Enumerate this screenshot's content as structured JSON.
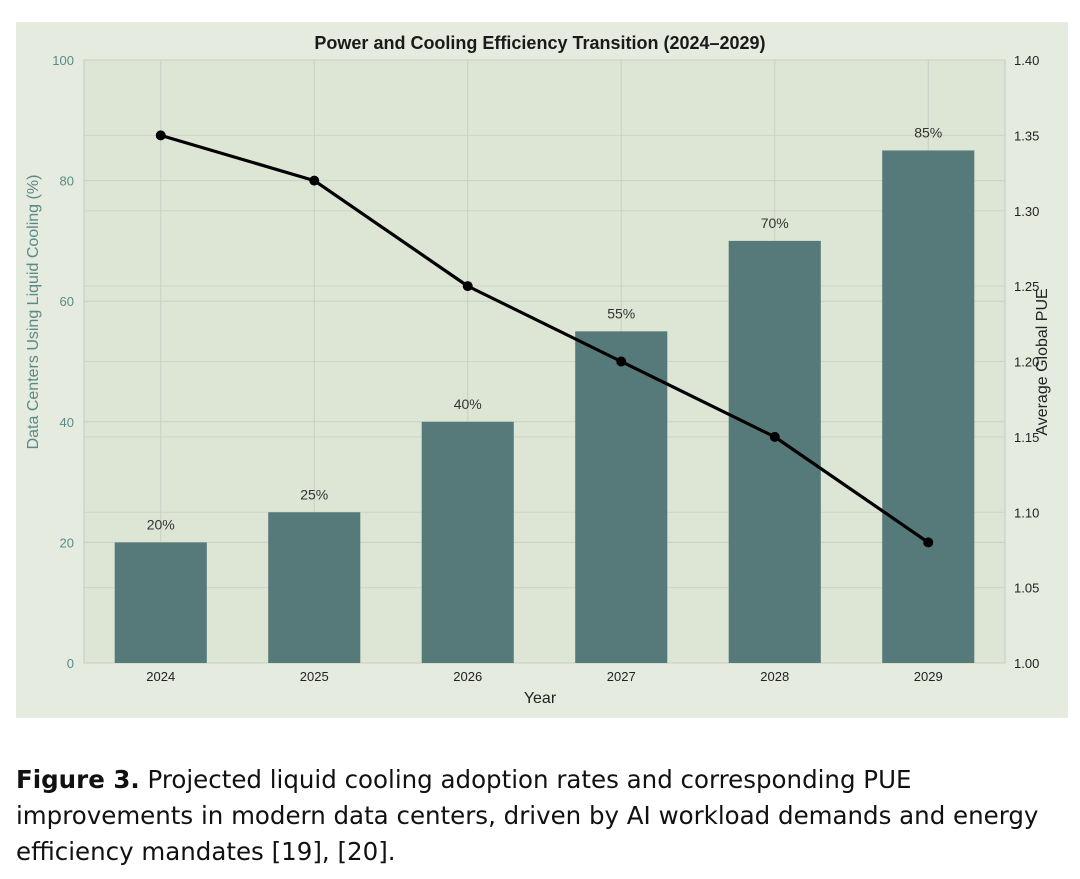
{
  "chart_data": {
    "type": "bar",
    "title": "Power and Cooling Efficiency Transition (2024–2029)",
    "xlabel": "Year",
    "ylabel": "Data Centers Using Liquid Cooling (%)",
    "y2label": "Average Global PUE",
    "categories": [
      "2024",
      "2025",
      "2026",
      "2027",
      "2028",
      "2029"
    ],
    "series": [
      {
        "values": [
          20,
          25,
          40,
          55,
          70,
          85
        ],
        "kind": "bar",
        "axis": "left"
      },
      {
        "values": [
          1.35,
          1.32,
          1.25,
          1.2,
          1.15,
          1.08
        ],
        "kind": "line",
        "axis": "right"
      }
    ],
    "data_labels": [
      "20%",
      "25%",
      "40%",
      "55%",
      "70%",
      "85%"
    ],
    "ylim": [
      0,
      100
    ],
    "y2lim": [
      1.0,
      1.4
    ],
    "yticks": [
      "0",
      "20",
      "40",
      "60",
      "80",
      "100"
    ],
    "y2ticks": [
      "1.00",
      "1.05",
      "1.10",
      "1.15",
      "1.20",
      "1.25",
      "1.30",
      "1.35",
      "1.40"
    ],
    "grid": true,
    "colors": {
      "bar": "#567a7a",
      "line": "#000000",
      "left_axis_text": "#5a8a87",
      "panel": "#e6ebe0",
      "plot": "#dde5d4",
      "grid": "#c9cfc5"
    }
  },
  "caption": {
    "label": "Figure 3.",
    "text": "Projected liquid cooling adoption rates and corresponding PUE improvements in modern data centers, driven by AI workload demands and energy efficiency mandates  [19], [20]."
  }
}
